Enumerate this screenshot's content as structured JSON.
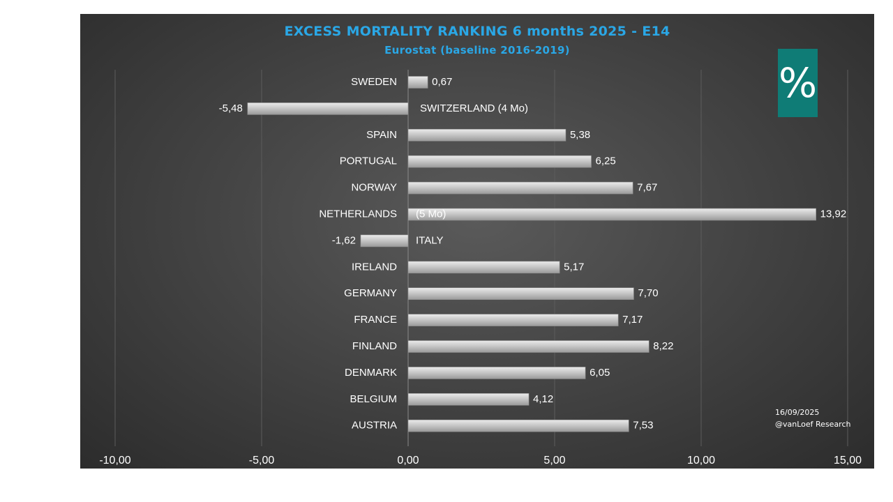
{
  "chart_data": {
    "type": "bar",
    "orientation": "horizontal",
    "title": "EXCESS MORTALITY RANKING 6 months 2025 - E14",
    "subtitle": "Eurostat (baseline 2016-2019)",
    "categories": [
      "SWEDEN",
      "",
      "SPAIN",
      "PORTUGAL",
      "NORWAY",
      "NETHERLANDS",
      "",
      "IRELAND",
      "GERMANY",
      "FRANCE",
      "FINLAND",
      "DENMARK",
      "BELGIUM",
      "AUSTRIA"
    ],
    "inner_labels": [
      "",
      "SWITZERLAND (4 Mo)",
      "",
      "",
      "",
      "(5 Mo)",
      "ITALY",
      "",
      "",
      "",
      "",
      "",
      "",
      ""
    ],
    "values": [
      0.67,
      -5.48,
      5.38,
      6.25,
      7.67,
      13.92,
      -1.62,
      5.17,
      7.7,
      7.17,
      8.22,
      6.05,
      4.12,
      7.53
    ],
    "value_labels": [
      "0,67",
      "-5,48",
      "5,38",
      "6,25",
      "7,67",
      "13,92",
      "-1,62",
      "5,17",
      "7,70",
      "7,17",
      "8,22",
      "6,05",
      "4,12",
      "7,53"
    ],
    "xlim": [
      -10,
      15
    ],
    "x_ticks": [
      -10,
      -5,
      0,
      5,
      10,
      15
    ],
    "x_tick_labels": [
      "-10,00",
      "-5,00",
      "0,00",
      "5,00",
      "10,00",
      "15,00"
    ],
    "grid": "vertical",
    "legend": "none",
    "colors": {
      "bar": "#bdbdbd",
      "title": "#2aa7e6",
      "text": "#ffffff",
      "badge": "#0f7c76"
    }
  },
  "badge": {
    "symbol": "%"
  },
  "credit": {
    "date": "16/09/2025",
    "author": "@vanLoef Research"
  }
}
